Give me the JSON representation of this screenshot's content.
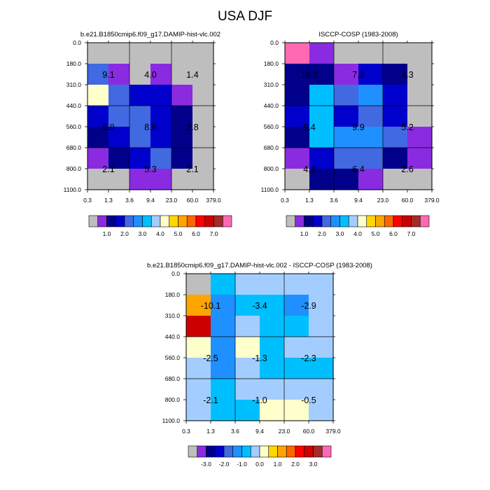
{
  "figure_title": "USA DJF",
  "colors": {
    "missing": "#bebebe",
    "line": "#000000",
    "text": "#000000"
  },
  "chart_data": [
    {
      "type": "heatmap",
      "title": "b.e21.B1850cmip6.f09_g17.DAMIP-hist-vlc.002",
      "x_tick_labels": [
        "0.3",
        "1.3",
        "3.6",
        "9.4",
        "23.0",
        "60.0",
        "379.0"
      ],
      "y_tick_labels": [
        "0.0",
        "180.0",
        "310.0",
        "440.0",
        "560.0",
        "680.0",
        "800.0",
        "1100.0"
      ],
      "cell_colors": [
        [
          "#bebebe",
          "#bebebe",
          "#bebebe",
          "#bebebe",
          "#bebebe",
          "#bebebe"
        ],
        [
          "#4169e1",
          "#8a2be2",
          "#bebebe",
          "#8a2be2",
          "#bebebe",
          "#bebebe"
        ],
        [
          "#ffffcc",
          "#4169e1",
          "#0000cd",
          "#0000cd",
          "#8a2be2",
          "#bebebe"
        ],
        [
          "#0000cd",
          "#4169e1",
          "#4169e1",
          "#0000cd",
          "#00008b",
          "#bebebe"
        ],
        [
          "#00008b",
          "#0000cd",
          "#4169e1",
          "#0000cd",
          "#00008b",
          "#bebebe"
        ],
        [
          "#8a2be2",
          "#00008b",
          "#0000cd",
          "#4169e1",
          "#00008b",
          "#bebebe"
        ],
        [
          "#bebebe",
          "#bebebe",
          "#8a2be2",
          "#8a2be2",
          "#bebebe",
          "#bebebe"
        ]
      ],
      "annotations": [
        {
          "label": "9.1",
          "x_index": 1.0,
          "y_index": 1.5
        },
        {
          "label": "4.0",
          "x_index": 3.0,
          "y_index": 1.5
        },
        {
          "label": "1.4",
          "x_index": 5.0,
          "y_index": 1.5
        },
        {
          "label": "6.9",
          "x_index": 1.0,
          "y_index": 4.0
        },
        {
          "label": "8.6",
          "x_index": 3.0,
          "y_index": 4.0
        },
        {
          "label": "2.8",
          "x_index": 5.0,
          "y_index": 4.0
        },
        {
          "label": "2.1",
          "x_index": 1.0,
          "y_index": 6.0
        },
        {
          "label": "5.3",
          "x_index": 3.0,
          "y_index": 6.0
        },
        {
          "label": "2.1",
          "x_index": 5.0,
          "y_index": 6.0
        }
      ],
      "colorbar": {
        "colors": [
          "#bebebe",
          "#8a2be2",
          "#00008b",
          "#0000cd",
          "#4169e1",
          "#1e90ff",
          "#00bfff",
          "#a4cdff",
          "#ffffcc",
          "#ffd700",
          "#ffa500",
          "#ff6600",
          "#ff0000",
          "#cc0000",
          "#a52a2a",
          "#ff69b4"
        ],
        "labels": [
          {
            "text": "1.0",
            "boundary": 2
          },
          {
            "text": "2.0",
            "boundary": 4
          },
          {
            "text": "3.0",
            "boundary": 6
          },
          {
            "text": "4.0",
            "boundary": 8
          },
          {
            "text": "5.0",
            "boundary": 10
          },
          {
            "text": "6.0",
            "boundary": 12
          },
          {
            "text": "7.0",
            "boundary": 14
          }
        ]
      }
    },
    {
      "type": "heatmap",
      "title": "ISCCP-COSP (1983-2008)",
      "x_tick_labels": [
        "0.3",
        "1.3",
        "3.6",
        "9.4",
        "23.0",
        "60.0",
        "379.0"
      ],
      "y_tick_labels": [
        "0.0",
        "180.0",
        "310.0",
        "440.0",
        "560.0",
        "680.0",
        "800.0",
        "1100.0"
      ],
      "cell_colors": [
        [
          "#ff69b4",
          "#8a2be2",
          "#bebebe",
          "#bebebe",
          "#bebebe",
          "#bebebe"
        ],
        [
          "#00008b",
          "#00008b",
          "#8a2be2",
          "#0000cd",
          "#00008b",
          "#bebebe"
        ],
        [
          "#00008b",
          "#00bfff",
          "#4169e1",
          "#1e90ff",
          "#0000cd",
          "#bebebe"
        ],
        [
          "#0000cd",
          "#00bfff",
          "#0000cd",
          "#4169e1",
          "#0000cd",
          "#bebebe"
        ],
        [
          "#00008b",
          "#00bfff",
          "#1e90ff",
          "#1e90ff",
          "#4169e1",
          "#8a2be2"
        ],
        [
          "#8a2be2",
          "#0000cd",
          "#4169e1",
          "#4169e1",
          "#00008b",
          "#8a2be2"
        ],
        [
          "#bebebe",
          "#00008b",
          "#00008b",
          "#8a2be2",
          "#bebebe",
          "#bebebe"
        ]
      ],
      "annotations": [
        {
          "label": "19.2",
          "x_index": 1.0,
          "y_index": 1.5
        },
        {
          "label": "7.3",
          "x_index": 3.0,
          "y_index": 1.5
        },
        {
          "label": "4.3",
          "x_index": 5.0,
          "y_index": 1.5
        },
        {
          "label": "9.4",
          "x_index": 1.0,
          "y_index": 4.0
        },
        {
          "label": "9.9",
          "x_index": 3.0,
          "y_index": 4.0
        },
        {
          "label": "5.2",
          "x_index": 5.0,
          "y_index": 4.0
        },
        {
          "label": "4.2",
          "x_index": 1.0,
          "y_index": 6.0
        },
        {
          "label": "6.4",
          "x_index": 3.0,
          "y_index": 6.0
        },
        {
          "label": "2.6",
          "x_index": 5.0,
          "y_index": 6.0
        }
      ],
      "colorbar": {
        "colors": [
          "#bebebe",
          "#8a2be2",
          "#00008b",
          "#0000cd",
          "#4169e1",
          "#1e90ff",
          "#00bfff",
          "#a4cdff",
          "#ffffcc",
          "#ffd700",
          "#ffa500",
          "#ff6600",
          "#ff0000",
          "#cc0000",
          "#a52a2a",
          "#ff69b4"
        ],
        "labels": [
          {
            "text": "1.0",
            "boundary": 2
          },
          {
            "text": "2.0",
            "boundary": 4
          },
          {
            "text": "3.0",
            "boundary": 6
          },
          {
            "text": "4.0",
            "boundary": 8
          },
          {
            "text": "5.0",
            "boundary": 10
          },
          {
            "text": "6.0",
            "boundary": 12
          },
          {
            "text": "7.0",
            "boundary": 14
          }
        ]
      }
    },
    {
      "type": "heatmap",
      "title": "b.e21.B1850cmip6.f09_g17.DAMIP-hist-vlc.002 - ISCCP-COSP (1983-2008)",
      "x_tick_labels": [
        "0.3",
        "1.3",
        "3.6",
        "9.4",
        "23.0",
        "60.0",
        "379.0"
      ],
      "y_tick_labels": [
        "0.0",
        "180.0",
        "310.0",
        "440.0",
        "560.0",
        "680.0",
        "800.0",
        "1100.0"
      ],
      "cell_colors": [
        [
          "#bebebe",
          "#00bfff",
          "#a4cdff",
          "#a4cdff",
          "#a4cdff",
          "#a4cdff"
        ],
        [
          "#ffa500",
          "#1e90ff",
          "#00bfff",
          "#00bfff",
          "#1e90ff",
          "#a4cdff"
        ],
        [
          "#cc0000",
          "#1e90ff",
          "#a4cdff",
          "#00bfff",
          "#00bfff",
          "#a4cdff"
        ],
        [
          "#ffffcc",
          "#1e90ff",
          "#ffffcc",
          "#00bfff",
          "#a4cdff",
          "#a4cdff"
        ],
        [
          "#a4cdff",
          "#1e90ff",
          "#a4cdff",
          "#00bfff",
          "#00bfff",
          "#00bfff"
        ],
        [
          "#a4cdff",
          "#00bfff",
          "#a4cdff",
          "#a4cdff",
          "#a4cdff",
          "#a4cdff"
        ],
        [
          "#a4cdff",
          "#00bfff",
          "#00bfff",
          "#ffffcc",
          "#ffffcc",
          "#a4cdff"
        ]
      ],
      "annotations": [
        {
          "label": "-10.1",
          "x_index": 1.0,
          "y_index": 1.5
        },
        {
          "label": "-3.4",
          "x_index": 3.0,
          "y_index": 1.5
        },
        {
          "label": "-2.9",
          "x_index": 5.0,
          "y_index": 1.5
        },
        {
          "label": "-2.5",
          "x_index": 1.0,
          "y_index": 4.0
        },
        {
          "label": "-1.3",
          "x_index": 3.0,
          "y_index": 4.0
        },
        {
          "label": "-2.3",
          "x_index": 5.0,
          "y_index": 4.0
        },
        {
          "label": "-2.1",
          "x_index": 1.0,
          "y_index": 6.0
        },
        {
          "label": "-1.0",
          "x_index": 3.0,
          "y_index": 6.0
        },
        {
          "label": "-0.5",
          "x_index": 5.0,
          "y_index": 6.0
        }
      ],
      "colorbar": {
        "colors": [
          "#bebebe",
          "#8a2be2",
          "#00008b",
          "#0000cd",
          "#4169e1",
          "#1e90ff",
          "#00bfff",
          "#a4cdff",
          "#ffffcc",
          "#ffd700",
          "#ffa500",
          "#ff6600",
          "#ff0000",
          "#cc0000",
          "#a52a2a",
          "#ff69b4"
        ],
        "labels": [
          {
            "text": "-3.0",
            "boundary": 2
          },
          {
            "text": "-2.0",
            "boundary": 4
          },
          {
            "text": "-1.0",
            "boundary": 6
          },
          {
            "text": "0.0",
            "boundary": 8
          },
          {
            "text": "1.0",
            "boundary": 10
          },
          {
            "text": "2.0",
            "boundary": 12
          },
          {
            "text": "3.0",
            "boundary": 14
          }
        ]
      }
    }
  ]
}
